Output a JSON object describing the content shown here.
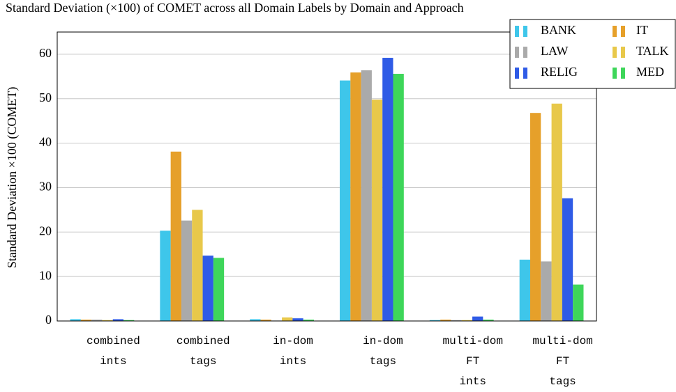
{
  "chart_data": {
    "type": "bar",
    "title": "Standard Deviation (×100) of COMET across all Domain Labels by Domain and Approach",
    "y_label": "Standard Deviation ×100 (COMET)",
    "categories": [
      [
        "combined",
        "ints"
      ],
      [
        "combined",
        "tags"
      ],
      [
        "in-dom",
        "ints"
      ],
      [
        "in-dom",
        "tags"
      ],
      [
        "multi-dom",
        "FT",
        "ints"
      ],
      [
        "multi-dom",
        "FT",
        "tags"
      ]
    ],
    "series": [
      {
        "name": "BANK",
        "color": "#3ec6ea",
        "values": [
          0.4,
          20.3,
          0.4,
          54.1,
          0.2,
          13.8
        ]
      },
      {
        "name": "IT",
        "color": "#e6a02a",
        "values": [
          0.3,
          38.1,
          0.3,
          55.9,
          0.3,
          46.8
        ]
      },
      {
        "name": "LAW",
        "color": "#aaaaaa",
        "values": [
          0.3,
          22.6,
          0.1,
          56.4,
          0.2,
          13.4
        ]
      },
      {
        "name": "TALK",
        "color": "#e8c84a",
        "values": [
          0.2,
          25.0,
          0.8,
          49.8,
          0.2,
          48.9
        ]
      },
      {
        "name": "RELIG",
        "color": "#2f5be6",
        "values": [
          0.4,
          14.7,
          0.6,
          59.2,
          1.0,
          27.6
        ]
      },
      {
        "name": "MED",
        "color": "#3ed65a",
        "values": [
          0.2,
          14.2,
          0.3,
          55.6,
          0.3,
          8.2
        ]
      }
    ],
    "ylim": [
      0,
      65
    ],
    "yticks": [
      0,
      10,
      20,
      30,
      40,
      50,
      60
    ],
    "grid": true,
    "legend": "top-right"
  }
}
